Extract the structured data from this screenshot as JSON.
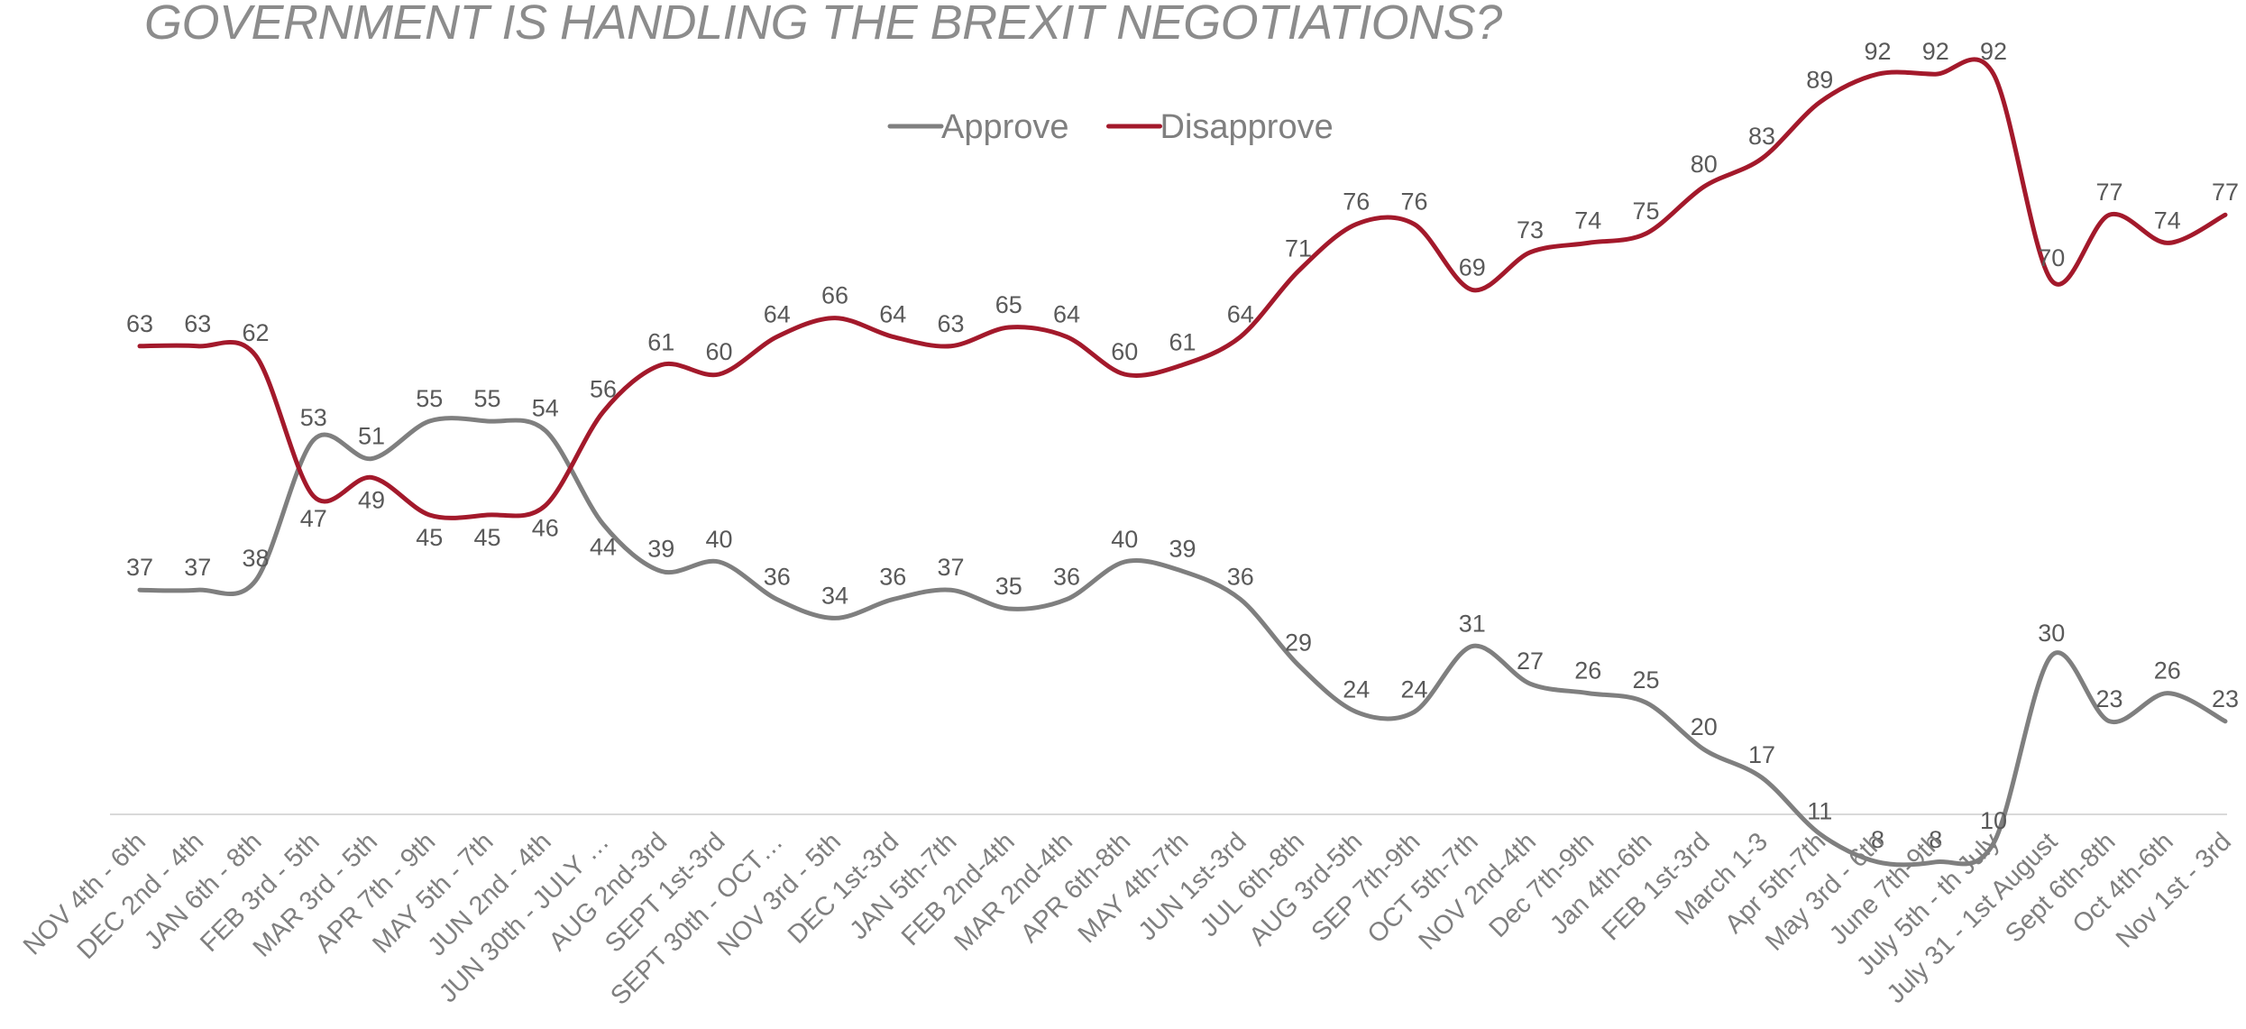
{
  "chart_data": {
    "type": "line",
    "title": "GOVERNMENT IS HANDLING THE BREXIT NEGOTIATIONS?",
    "xlabel": "",
    "ylabel": "",
    "ylim": [
      0,
      100
    ],
    "grid": false,
    "legend_position": "top-center",
    "categories": [
      "NOV 4th - 6th",
      "DEC 2nd - 4th",
      "JAN 6th - 8th",
      "FEB 3rd - 5th",
      "MAR 3rd - 5th",
      "APR 7th - 9th",
      "MAY 5th - 7th",
      "JUN 2nd - 4th",
      "JUN 30th - JULY …",
      "AUG 2nd-3rd",
      "SEPT 1st-3rd",
      "SEPT 30th - OCT…",
      "NOV 3rd - 5th",
      "DEC 1st-3rd",
      "JAN 5th-7th",
      "FEB 2nd-4th",
      "MAR 2nd-4th",
      "APR 6th-8th",
      "MAY 4th-7th",
      "JUN 1st-3rd",
      "JUL 6th-8th",
      "AUG 3rd-5th",
      "SEP 7th-9th",
      "OCT 5th-7th",
      "NOV 2nd-4th",
      "Dec 7th-9th",
      "Jan 4th-6th",
      "FEB 1st-3rd",
      "March 1-3",
      "Apr 5th-7th",
      "May 3rd - 6th",
      "June 7th-9th",
      "July 5th - th July",
      "July 31 - 1st August",
      "Sept 6th-8th",
      "Oct 4th-6th",
      "Nov 1st - 3rd"
    ],
    "series": [
      {
        "name": "Approve",
        "color": "#7f7f7f",
        "values": [
          37,
          37,
          38,
          53,
          51,
          55,
          55,
          54,
          44,
          39,
          40,
          36,
          34,
          36,
          37,
          35,
          36,
          40,
          39,
          36,
          29,
          24,
          24,
          31,
          27,
          26,
          25,
          20,
          17,
          11,
          8,
          8,
          10,
          30,
          23,
          26,
          23
        ]
      },
      {
        "name": "Disapprove",
        "color": "#a3192b",
        "values": [
          63,
          63,
          62,
          47,
          49,
          45,
          45,
          46,
          56,
          61,
          60,
          64,
          66,
          64,
          63,
          65,
          64,
          60,
          61,
          64,
          71,
          76,
          76,
          69,
          73,
          74,
          75,
          80,
          83,
          89,
          92,
          92,
          92,
          70,
          77,
          74,
          77
        ]
      }
    ]
  }
}
